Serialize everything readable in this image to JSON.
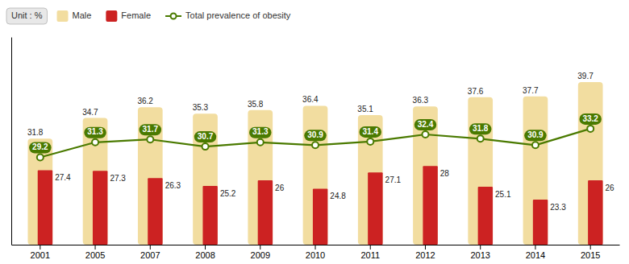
{
  "chart_data": {
    "type": "bar",
    "annotations": [
      "Unit : %"
    ],
    "categories": [
      "2001",
      "2005",
      "2007",
      "2008",
      "2009",
      "2010",
      "2011",
      "2012",
      "2013",
      "2014",
      "2015"
    ],
    "series": [
      {
        "name": "Male",
        "type": "bar",
        "color": "#f2dda0",
        "values": [
          31.8,
          34.7,
          36.2,
          35.3,
          35.8,
          36.4,
          35.1,
          36.3,
          37.6,
          37.7,
          39.7
        ]
      },
      {
        "name": "Female",
        "type": "bar",
        "color": "#cc2222",
        "values": [
          27.4,
          27.3,
          26.3,
          25.2,
          26.0,
          24.8,
          27.1,
          28.0,
          25.1,
          23.3,
          26.0
        ]
      },
      {
        "name": "Total prevalence of obesity",
        "type": "line",
        "color": "#4a7a00",
        "marker": "circle",
        "values": [
          29.2,
          31.3,
          31.7,
          30.7,
          31.3,
          30.9,
          31.4,
          32.4,
          31.8,
          30.9,
          33.2
        ]
      }
    ],
    "ylim": [
      17,
      46
    ],
    "yticks": [],
    "tick_labels": "x",
    "data_labels": true,
    "legend": "top-left"
  }
}
